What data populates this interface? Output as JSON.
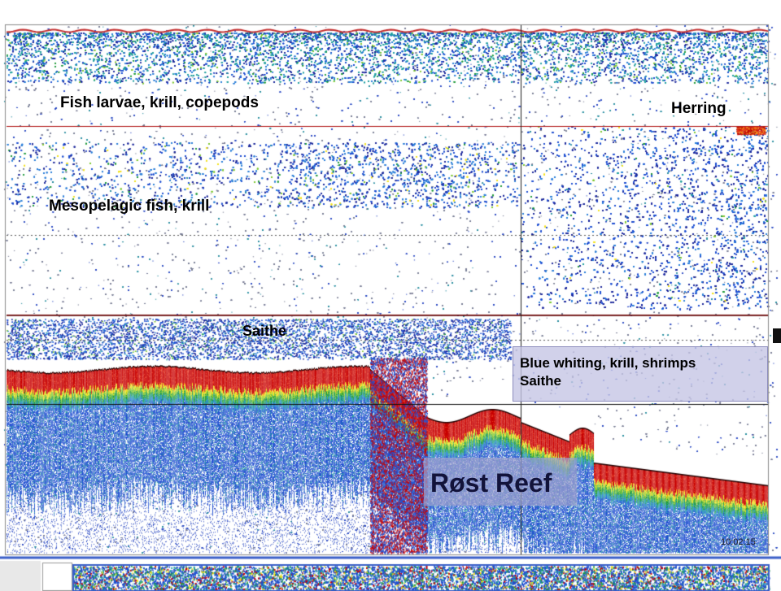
{
  "labels": {
    "fish_larvae": "Fish larvae, krill, copepods",
    "herring": "Herring",
    "mesopelagic": "Mesopelagic fish, krill",
    "saithe_upper": "Saithe",
    "blue_whiting": "Blue whiting, krill, shrimps",
    "saithe_lower": "Saithe",
    "reef": "Røst Reef"
  },
  "timestamp": "10:02:15",
  "colors": {
    "echo_red": "#c80000",
    "echo_blue": "#1a3fc8",
    "layer_line": "#b01010",
    "annotation_box": "#c4c4e4",
    "reef_box": "#9ba0cd",
    "bottom_strip_border": "#3a5fc8"
  },
  "icons": {
    "scroll_marker": "black-square-marker-icon"
  }
}
